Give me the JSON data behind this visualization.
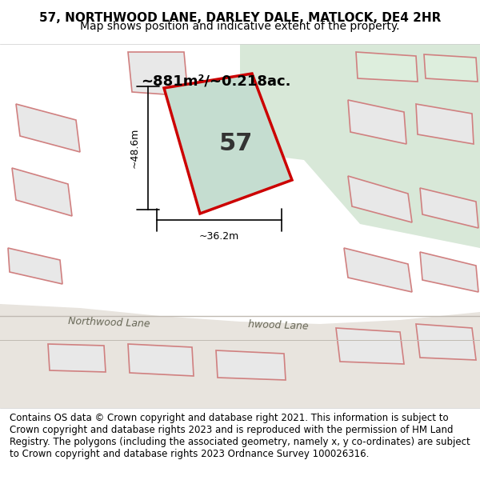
{
  "title_line1": "57, NORTHWOOD LANE, DARLEY DALE, MATLOCK, DE4 2HR",
  "title_line2": "Map shows position and indicative extent of the property.",
  "area_text": "~881m²/~0.218ac.",
  "number_text": "57",
  "dim_width": "~36.2m",
  "dim_height": "~48.6m",
  "footer_text": "Contains OS data © Crown copyright and database right 2021. This information is subject to Crown copyright and database rights 2023 and is reproduced with the permission of HM Land Registry. The polygons (including the associated geometry, namely x, y co-ordinates) are subject to Crown copyright and database rights 2023 Ordnance Survey 100026316.",
  "bg_color": "#f0f0f0",
  "map_bg": "#f5f5f5",
  "road_color": "#d4cfc9",
  "plot_fill": "#c8ddd0",
  "plot_stroke": "#cc0000",
  "dim_line_color": "#000000",
  "road_label": "Northwood Lane",
  "title_fontsize": 11,
  "subtitle_fontsize": 10,
  "footer_fontsize": 8.5
}
